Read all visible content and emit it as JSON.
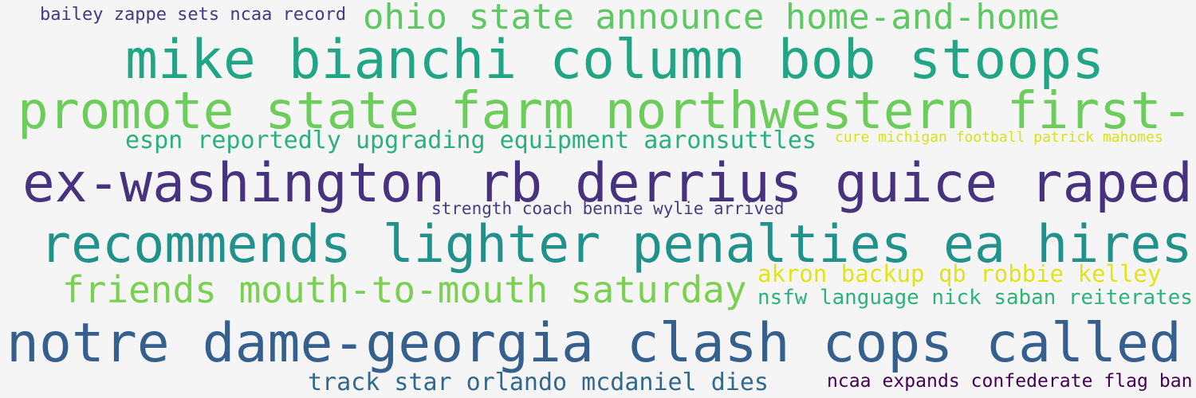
{
  "word_cloud": {
    "phrases": [
      {
        "text": "bailey zappe sets ncaa record",
        "color": "#443983"
      },
      {
        "text": "ohio state announce home-and-home",
        "color": "#5ec962"
      },
      {
        "text": "mike bianchi column bob stoops",
        "color": "#21a685"
      },
      {
        "text": "promote state farm northwestern first-",
        "color": "#6ccd5a"
      },
      {
        "text": "espn reportedly upgrading equipment aaronsuttles",
        "color": "#2ab07f"
      },
      {
        "text": "cure michigan football patrick mahomes",
        "color": "#d8e219"
      },
      {
        "text": "ex-washington rb derrius guice raped",
        "color": "#46327e"
      },
      {
        "text": "strength coach bennie wylie arrived",
        "color": "#433e85"
      },
      {
        "text": "recommends lighter penalties ea hires",
        "color": "#21918c"
      },
      {
        "text": "akron backup qb robbie kelley",
        "color": "#e2e418"
      },
      {
        "text": "friends mouth-to-mouth saturday",
        "color": "#7ad151"
      },
      {
        "text": "nsfw language nick saban reiterates",
        "color": "#2db27d"
      },
      {
        "text": "notre dame-georgia clash cops called",
        "color": "#355f8d"
      },
      {
        "text": "track star orlando mcdaniel dies",
        "color": "#31688e"
      },
      {
        "text": "ncaa expands confederate flag ban",
        "color": "#440154"
      }
    ]
  }
}
